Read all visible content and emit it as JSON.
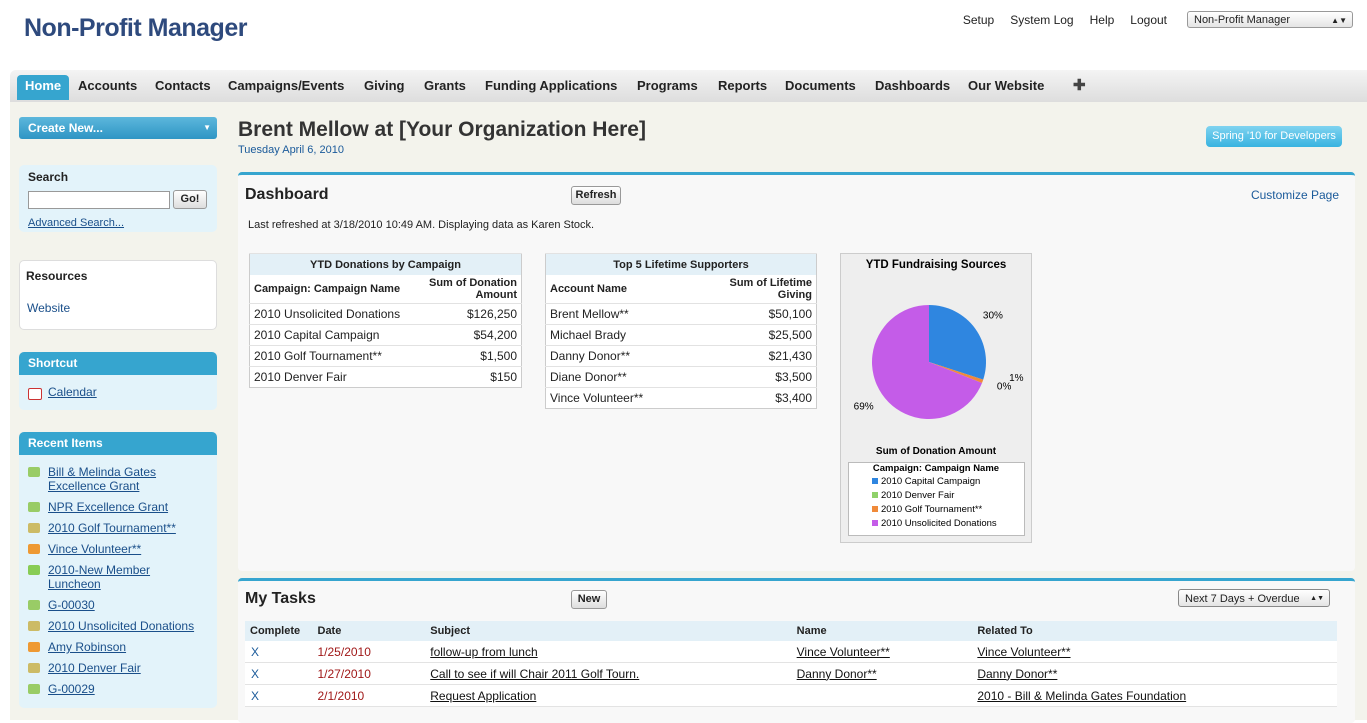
{
  "header": {
    "logo": "Non-Profit Manager",
    "links": [
      "Setup",
      "System Log",
      "Help",
      "Logout"
    ],
    "app_select": "Non-Profit Manager"
  },
  "tabs": [
    "Home",
    "Accounts",
    "Contacts",
    "Campaigns/Events",
    "Giving",
    "Grants",
    "Funding Applications",
    "Programs",
    "Reports",
    "Documents",
    "Dashboards",
    "Our Website"
  ],
  "sidebar": {
    "create_new": "Create New...",
    "search": {
      "title": "Search",
      "button": "Go!",
      "advanced": "Advanced Search..."
    },
    "resources": {
      "title": "Resources",
      "links": [
        "Website"
      ]
    },
    "shortcut": {
      "title": "Shortcut",
      "links": [
        "Calendar"
      ]
    },
    "recent": {
      "title": "Recent Items",
      "items": [
        "Bill & Melinda Gates Excellence Grant",
        "NPR Excellence Grant",
        "2010 Golf Tournament**",
        "Vince Volunteer**",
        "2010-New Member Luncheon",
        "G-00030",
        "2010 Unsolicited Donations",
        "Amy Robinson",
        "2010 Denver Fair",
        "G-00029"
      ]
    }
  },
  "main": {
    "title": "Brent Mellow at [Your Organization Here]",
    "date": "Tuesday April 6, 2010",
    "promo": "Spring '10 for Developers"
  },
  "dashboard": {
    "title": "Dashboard",
    "refresh": "Refresh",
    "customize": "Customize Page",
    "status": "Last refreshed at 3/18/2010 10:49 AM. Displaying data as Karen Stock.",
    "table1": {
      "title": "YTD Donations by Campaign",
      "headers": [
        "Campaign: Campaign Name",
        "Sum of Donation Amount"
      ],
      "rows": [
        [
          "2010 Unsolicited Donations",
          "$126,250"
        ],
        [
          "2010 Capital Campaign",
          "$54,200"
        ],
        [
          "2010 Golf Tournament**",
          "$1,500"
        ],
        [
          "2010 Denver Fair",
          "$150"
        ]
      ]
    },
    "table2": {
      "title": "Top 5 Lifetime Supporters",
      "headers": [
        "Account Name",
        "Sum of Lifetime Giving"
      ],
      "rows": [
        [
          "Brent Mellow**",
          "$50,100"
        ],
        [
          "Michael Brady",
          "$25,500"
        ],
        [
          "Danny Donor**",
          "$21,430"
        ],
        [
          "Diane Donor**",
          "$3,500"
        ],
        [
          "Vince Volunteer**",
          "$3,400"
        ]
      ]
    },
    "pie": {
      "type": "pie",
      "title": "YTD Fundraising Sources",
      "value_axis_label": "Sum of Donation Amount",
      "legend_title": "Campaign: Campaign Name",
      "categories": [
        "2010 Capital Campaign",
        "2010 Denver Fair",
        "2010 Golf Tournament**",
        "2010 Unsolicited Donations"
      ],
      "values": [
        30,
        0,
        1,
        69
      ],
      "value_labels": [
        "30%",
        "0%",
        "1%",
        "69%"
      ],
      "colors": [
        "#2f86e0",
        "#8fd16a",
        "#f08a3a",
        "#c45ce8"
      ]
    }
  },
  "tasks": {
    "title": "My Tasks",
    "new": "New",
    "filter": "Next 7 Days + Overdue",
    "headers": [
      "Complete",
      "Date",
      "Subject",
      "Name",
      "Related To"
    ],
    "rows": [
      [
        "X",
        "1/25/2010",
        "follow-up from lunch",
        "Vince Volunteer**",
        "Vince Volunteer**"
      ],
      [
        "X",
        "1/27/2010",
        "Call to see if will Chair 2011 Golf Tourn.",
        "Danny Donor**",
        "Danny Donor**"
      ],
      [
        "X",
        "2/1/2010",
        "Request Application",
        null,
        "2010 - Bill & Melinda Gates Foundation"
      ]
    ]
  }
}
